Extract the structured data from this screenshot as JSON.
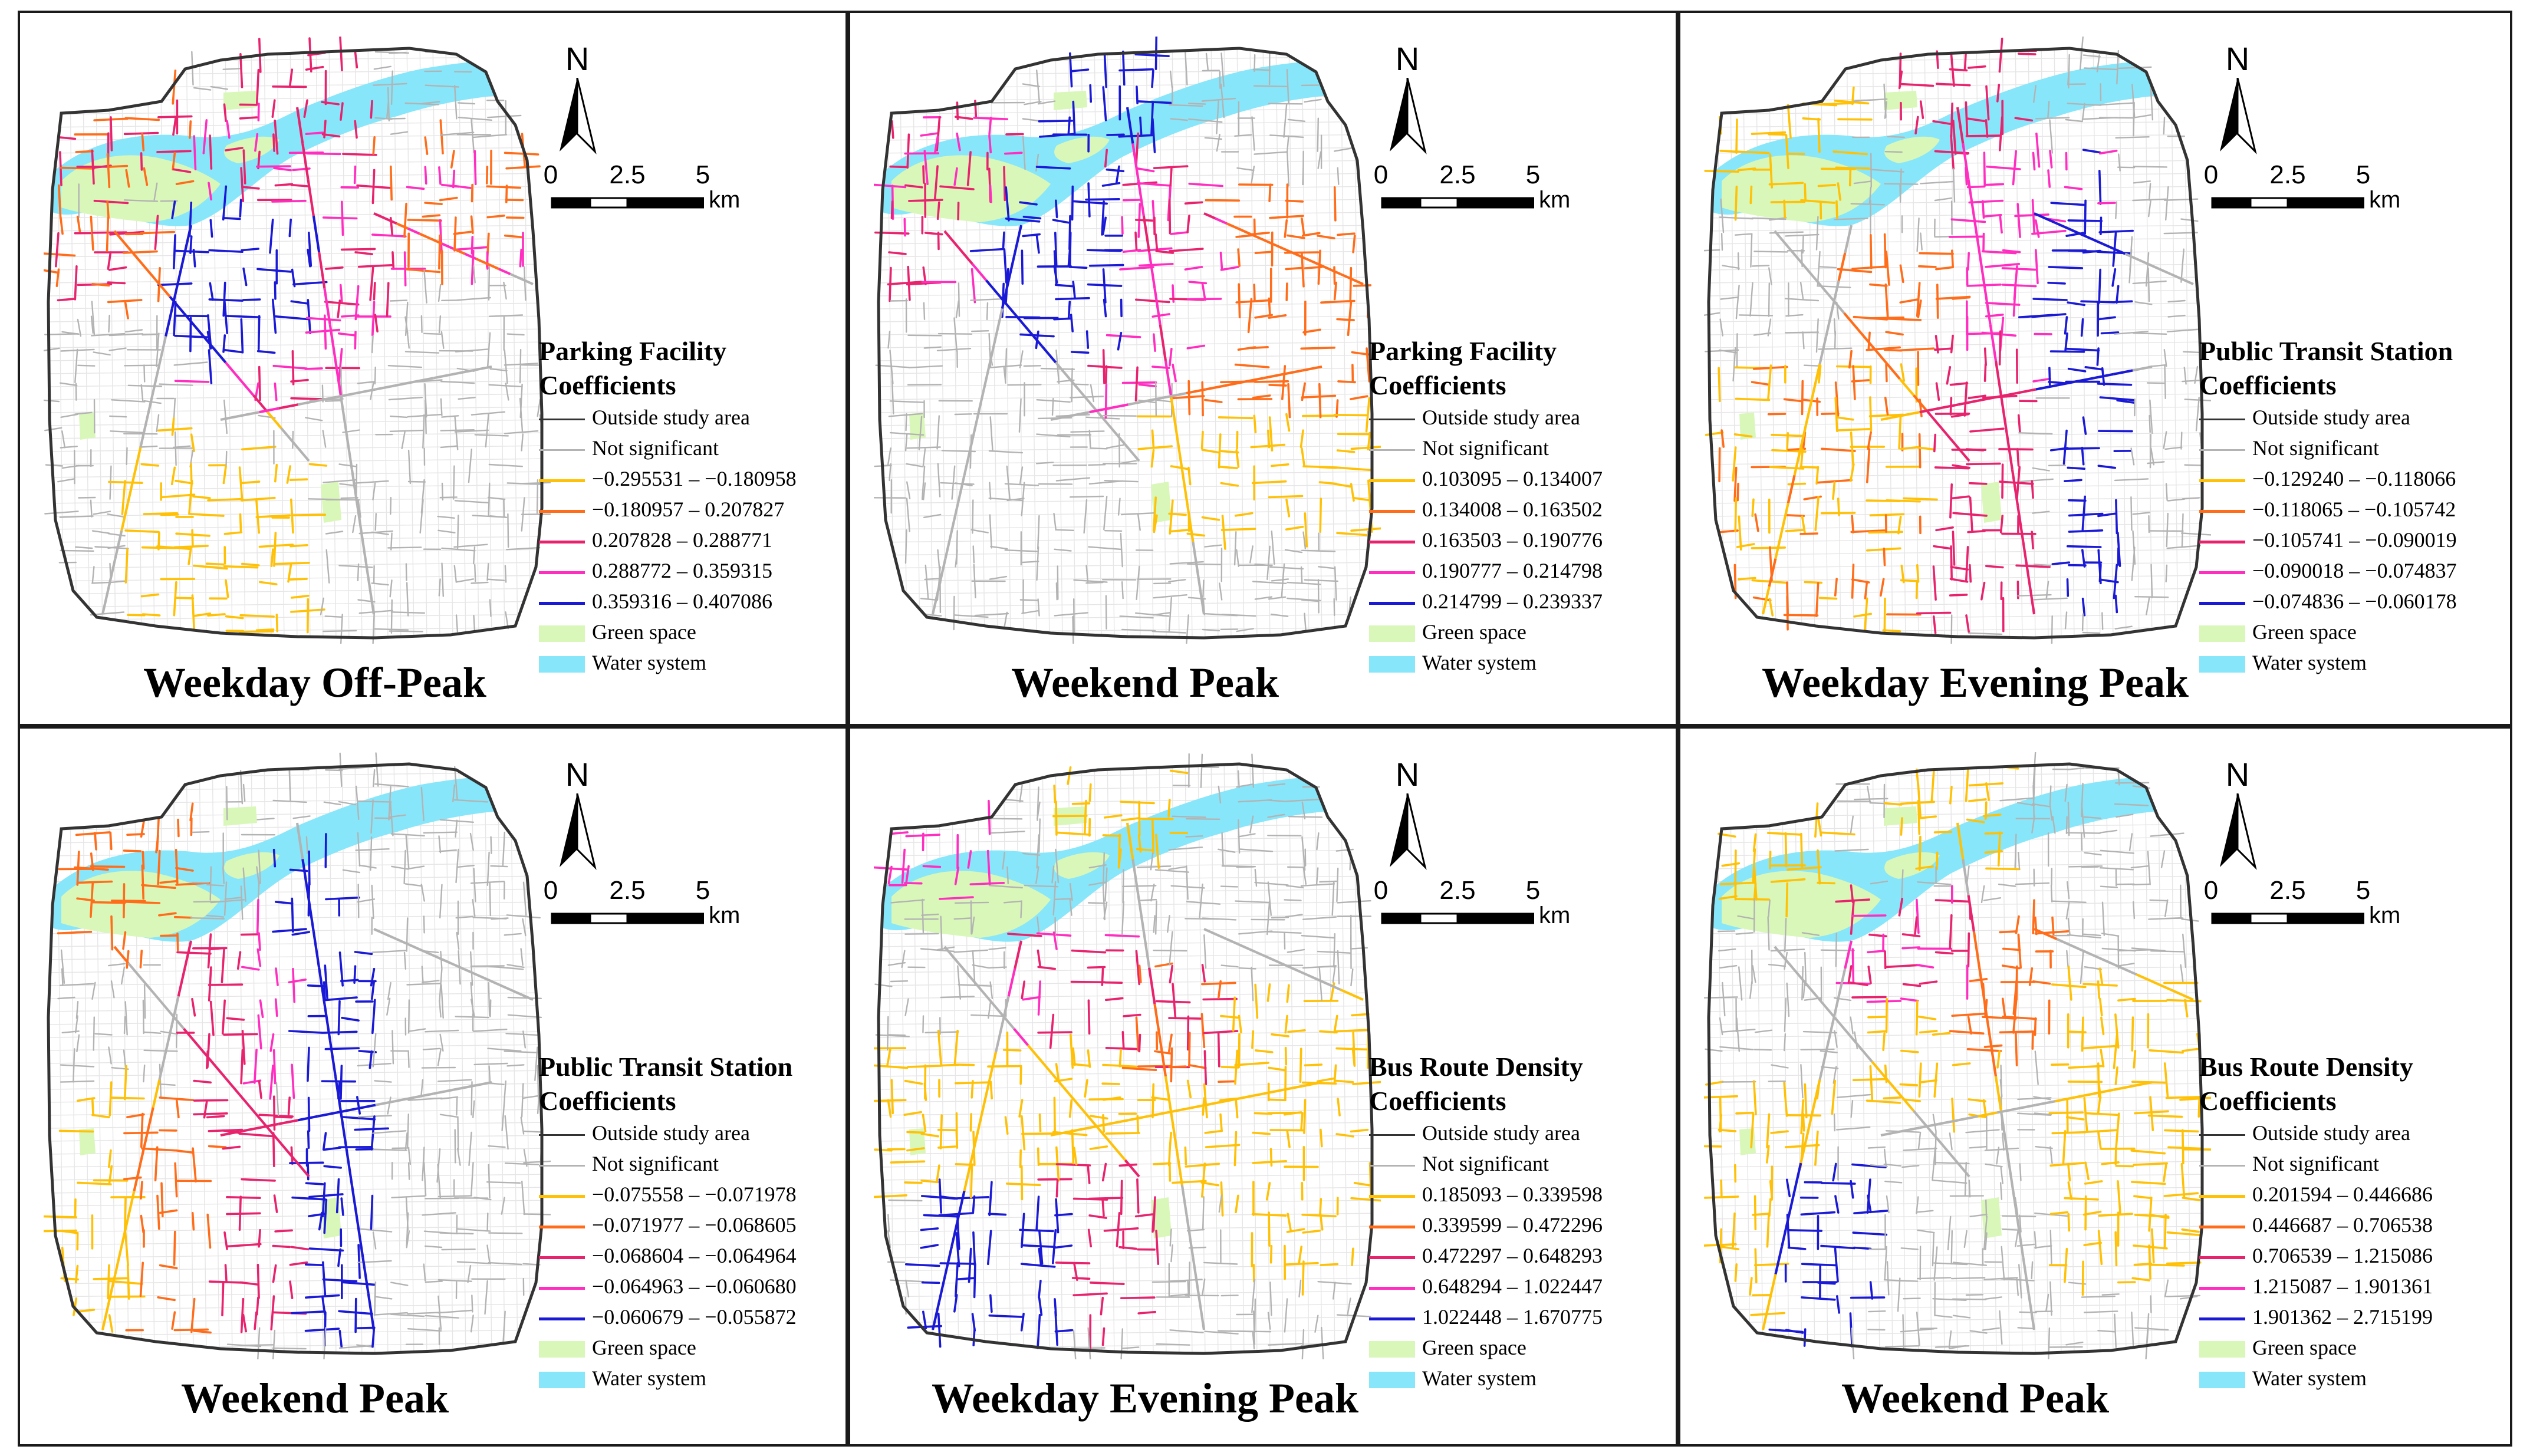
{
  "common": {
    "north_label": "N",
    "scale_ticks": [
      "0",
      "2.5",
      "5"
    ],
    "scale_unit": "km",
    "outside_label": "Outside study area",
    "not_sig_label": "Not significant",
    "green_label": "Green space",
    "water_label": "Water system"
  },
  "colors": {
    "classes": [
      "#ffc107",
      "#ff6d1a",
      "#e8236e",
      "#ff2ec0",
      "#1a1ad6"
    ],
    "outside": "#333333",
    "not_significant": "#b3b3b3",
    "green": "#d9f7b8",
    "water": "#87e6fa",
    "minor_street": "#e6e6e6"
  },
  "panels": [
    {
      "title": "Weekday Off-Peak",
      "legend_title": [
        "Parking Facility",
        "Coefficients"
      ],
      "classes": [
        "−0.295531 – −0.180958",
        "−0.180957 – 0.207827",
        "0.207828 – 0.288771",
        "0.288772 – 0.359315",
        "0.359316 – 0.407086"
      ],
      "pattern": "offpeak_parking"
    },
    {
      "title": "Weekend Peak",
      "legend_title": [
        "Parking Facility",
        "Coefficients"
      ],
      "classes": [
        "0.103095 – 0.134007",
        "0.134008 – 0.163502",
        "0.163503 – 0.190776",
        "0.190777 – 0.214798",
        "0.214799 – 0.239337"
      ],
      "pattern": "weekend_parking"
    },
    {
      "title": "Weekday Evening Peak",
      "legend_title": [
        "Public Transit Station",
        "Coefficients"
      ],
      "classes": [
        "−0.129240 – −0.118066",
        "−0.118065 – −0.105742",
        "−0.105741 – −0.090019",
        "−0.090018 – −0.074837",
        "−0.074836 – −0.060178"
      ],
      "pattern": "evening_transit"
    },
    {
      "title": "Weekend Peak",
      "legend_title": [
        "Public Transit Station",
        "Coefficients"
      ],
      "classes": [
        "−0.075558 – −0.071978",
        "−0.071977 – −0.068605",
        "−0.068604 – −0.064964",
        "−0.064963 – −0.060680",
        "−0.060679 – −0.055872"
      ],
      "pattern": "weekend_transit"
    },
    {
      "title": "Weekday Evening Peak",
      "legend_title": [
        "Bus Route Density",
        "Coefficients"
      ],
      "classes": [
        "0.185093 – 0.339598",
        "0.339599 – 0.472296",
        "0.472297 – 0.648293",
        "0.648294 – 1.022447",
        "1.022448 – 1.670775"
      ],
      "pattern": "evening_bus"
    },
    {
      "title": "Weekend Peak",
      "legend_title": [
        "Bus Route Density",
        "Coefficients"
      ],
      "classes": [
        "0.201594 – 0.446686",
        "0.446687 – 0.706538",
        "0.706539 – 1.215086",
        "1.215087 – 1.901361",
        "1.901362 – 2.715199"
      ],
      "pattern": "weekend_bus"
    }
  ]
}
